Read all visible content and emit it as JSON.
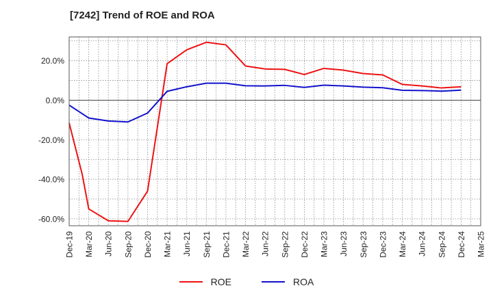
{
  "chart_data": {
    "type": "line",
    "title": "[7242]  Trend of ROE and ROA",
    "xlabel": "",
    "ylabel": "",
    "x": [
      "Dec-19",
      "Mar-20",
      "Jun-20",
      "Sep-20",
      "Dec-20",
      "Mar-21",
      "Jun-21",
      "Sep-21",
      "Dec-21",
      "Mar-22",
      "Jun-22",
      "Sep-22",
      "Dec-22",
      "Mar-23",
      "Jun-23",
      "Sep-23",
      "Dec-23",
      "Mar-24",
      "Jun-24",
      "Sep-24",
      "Dec-24",
      "Mar-25"
    ],
    "ylim": [
      -63.5,
      32
    ],
    "yticks": [
      20,
      0,
      -20,
      -40,
      -60
    ],
    "ytick_labels": [
      "20.0%",
      "0.0%",
      "-20.0%",
      "-40.0%",
      "-60.0%"
    ],
    "grid": true,
    "legend_position": "bottom",
    "series": [
      {
        "name": "ROE",
        "color": "#ee1111",
        "points": [
          {
            "x": 0,
            "y": -11.5
          },
          {
            "x": 0.666,
            "y": -37.5
          },
          {
            "x": 1,
            "y": -55.0
          },
          {
            "x": 2,
            "y": -61.0
          },
          {
            "x": 3,
            "y": -61.3
          },
          {
            "x": 4,
            "y": -46.0
          },
          {
            "x": 5,
            "y": 18.5
          },
          {
            "x": 6,
            "y": 25.5
          },
          {
            "x": 7,
            "y": 29.3
          },
          {
            "x": 8,
            "y": 28.0
          },
          {
            "x": 9,
            "y": 17.3
          },
          {
            "x": 10,
            "y": 15.8
          },
          {
            "x": 11,
            "y": 15.6
          },
          {
            "x": 12,
            "y": 13.0
          },
          {
            "x": 13,
            "y": 16.1
          },
          {
            "x": 14,
            "y": 15.2
          },
          {
            "x": 15,
            "y": 13.5
          },
          {
            "x": 16,
            "y": 12.8
          },
          {
            "x": 17,
            "y": 8.0
          },
          {
            "x": 18,
            "y": 7.2
          },
          {
            "x": 19,
            "y": 6.2
          },
          {
            "x": 20,
            "y": 6.8
          }
        ]
      },
      {
        "name": "ROA",
        "color": "#1111cc",
        "points": [
          {
            "x": 0,
            "y": -2.5
          },
          {
            "x": 1,
            "y": -9.0
          },
          {
            "x": 2,
            "y": -10.5
          },
          {
            "x": 3,
            "y": -11.0
          },
          {
            "x": 4,
            "y": -6.5
          },
          {
            "x": 5,
            "y": 4.5
          },
          {
            "x": 6,
            "y": 6.8
          },
          {
            "x": 7,
            "y": 8.6
          },
          {
            "x": 8,
            "y": 8.6
          },
          {
            "x": 9,
            "y": 7.3
          },
          {
            "x": 10,
            "y": 7.2
          },
          {
            "x": 11,
            "y": 7.5
          },
          {
            "x": 12,
            "y": 6.5
          },
          {
            "x": 13,
            "y": 7.6
          },
          {
            "x": 14,
            "y": 7.2
          },
          {
            "x": 15,
            "y": 6.6
          },
          {
            "x": 16,
            "y": 6.3
          },
          {
            "x": 17,
            "y": 5.0
          },
          {
            "x": 18,
            "y": 4.9
          },
          {
            "x": 19,
            "y": 4.6
          },
          {
            "x": 20,
            "y": 5.1
          }
        ]
      }
    ]
  }
}
